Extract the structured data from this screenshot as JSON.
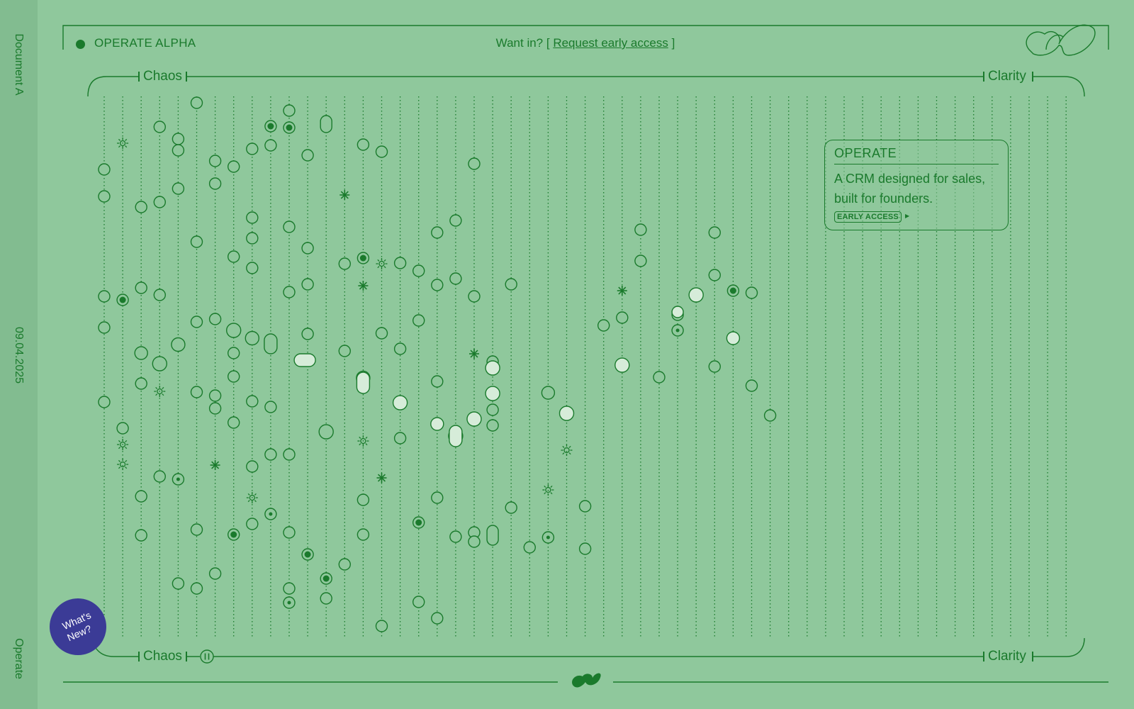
{
  "side": {
    "top_label": "Document A",
    "date": "09.04.2025",
    "bottom_label": "Operate"
  },
  "header": {
    "brand": "OPERATE ALPHA",
    "cta_prefix": "Want in? [",
    "cta_link": "Request early access",
    "cta_suffix": "]",
    "logo_icon": "squiggle-logo-icon"
  },
  "scale": {
    "left": "Chaos",
    "right": "Clarity"
  },
  "panel": {
    "title": "OPERATE",
    "line1": "A CRM designed for sales,",
    "line2": "built for founders.",
    "badge": "EARLY ACCESS"
  },
  "whats_new": {
    "line1": "What's",
    "line2": "New?"
  },
  "footer": {
    "logo_icon": "squiggle-logo-icon",
    "pause_icon": "pause-icon"
  },
  "colors": {
    "background": "#8fc89c",
    "ink": "#1a7a2c",
    "fill_light": "#d6ecd9",
    "badge_bg": "#3b3b96"
  }
}
